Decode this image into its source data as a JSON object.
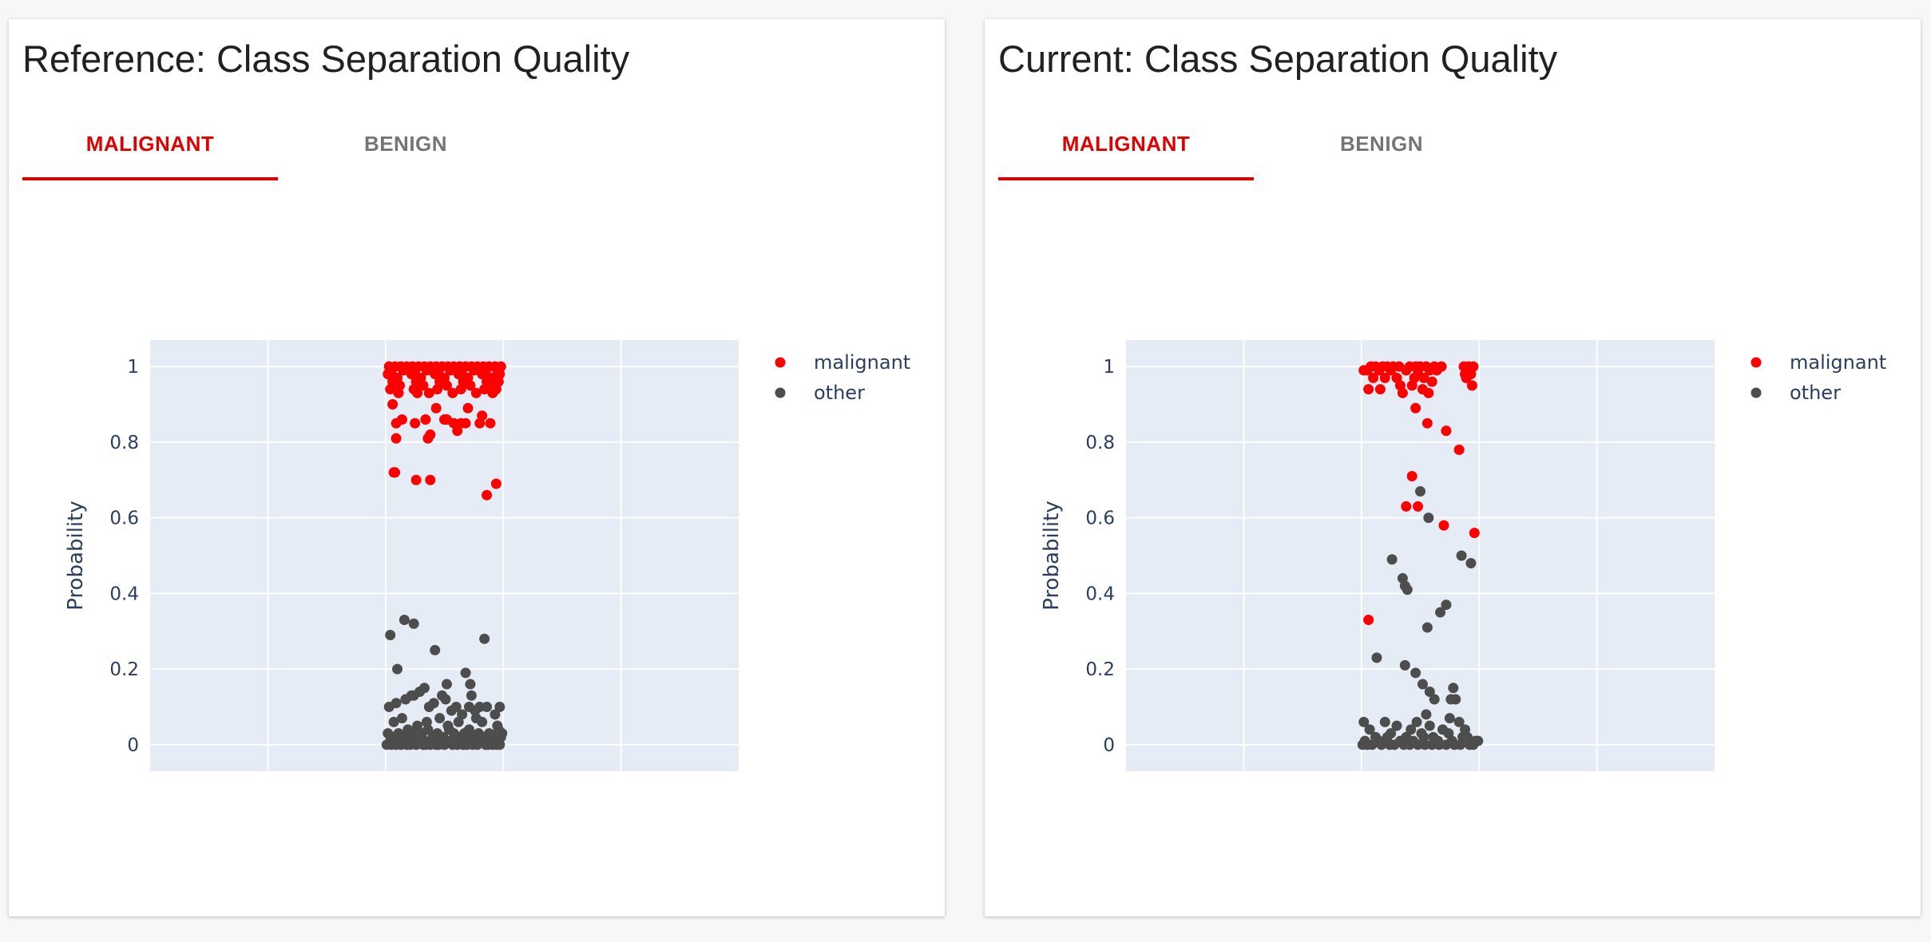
{
  "panels": [
    {
      "title": "Reference: Class Separation Quality",
      "tabs": [
        {
          "label": "MALIGNANT",
          "active": true
        },
        {
          "label": "BENIGN",
          "active": false
        }
      ]
    },
    {
      "title": "Current: Class Separation Quality",
      "tabs": [
        {
          "label": "MALIGNANT",
          "active": true
        },
        {
          "label": "BENIGN",
          "active": false
        }
      ]
    }
  ],
  "colors": {
    "accent": "#e00000",
    "malignant": "#ff0000",
    "other": "#4d4d4d",
    "plot_bg": "#e5ecf6",
    "tab_inactive": "#757575"
  },
  "chart_data": [
    {
      "type": "scatter",
      "title": "",
      "xlabel": "",
      "ylabel": "Probability",
      "ylim": [
        -0.07,
        1.07
      ],
      "xlim": [
        -1,
        4
      ],
      "yticks": [
        0,
        0.2,
        0.4,
        0.6,
        0.8,
        1
      ],
      "ytick_labels": [
        "0",
        "0.2",
        "0.4",
        "0.6",
        "0.8",
        "1"
      ],
      "grid": true,
      "legend": {
        "placement": "top-right",
        "entries": [
          "malignant",
          "other"
        ]
      },
      "series": [
        {
          "name": "malignant",
          "color": "#ff0000",
          "x": [
            1.03,
            1.08,
            1.13,
            1.18,
            1.23,
            1.28,
            1.33,
            1.38,
            1.43,
            1.48,
            1.53,
            1.58,
            1.63,
            1.68,
            1.73,
            1.78,
            1.83,
            1.88,
            1.93,
            1.98,
            1.05,
            1.15,
            1.25,
            1.35,
            1.45,
            1.55,
            1.65,
            1.75,
            1.85,
            1.95,
            1.02,
            1.22,
            1.42,
            1.62,
            1.82,
            1.97,
            1.1,
            1.3,
            1.5,
            1.7,
            1.9,
            1.06,
            1.26,
            1.46,
            1.66,
            1.86,
            1.96,
            1.12,
            1.32,
            1.52,
            1.72,
            1.92,
            1.04,
            1.24,
            1.44,
            1.64,
            1.84,
            1.94,
            1.11,
            1.27,
            1.37,
            1.57,
            1.77,
            1.91,
            1.06,
            1.14,
            1.34,
            1.43,
            1.5,
            1.58,
            1.7,
            1.82,
            1.89,
            1.09,
            1.25,
            1.52,
            1.68,
            1.8,
            1.09,
            1.36,
            1.38,
            1.64,
            1.61,
            1.07,
            1.08,
            1.26,
            1.38,
            1.86,
            1.94
          ],
          "y": [
            1,
            1,
            1,
            1,
            1,
            1,
            1,
            1,
            1,
            1,
            1,
            1,
            1,
            1,
            1,
            1,
            1,
            1,
            1,
            1,
            0.99,
            0.99,
            0.99,
            0.99,
            0.99,
            0.99,
            0.99,
            0.99,
            0.99,
            0.99,
            0.98,
            0.98,
            0.98,
            0.98,
            0.98,
            0.98,
            0.97,
            0.97,
            0.97,
            0.97,
            0.97,
            0.96,
            0.96,
            0.96,
            0.96,
            0.96,
            0.96,
            0.95,
            0.95,
            0.95,
            0.95,
            0.95,
            0.94,
            0.94,
            0.94,
            0.94,
            0.94,
            0.94,
            0.93,
            0.93,
            0.93,
            0.93,
            0.93,
            0.93,
            0.9,
            0.86,
            0.86,
            0.89,
            0.86,
            0.85,
            0.89,
            0.87,
            0.85,
            0.85,
            0.85,
            0.86,
            0.85,
            0.85,
            0.81,
            0.81,
            0.82,
            0.85,
            0.83,
            0.72,
            0.72,
            0.7,
            0.7,
            0.66,
            0.69
          ]
        },
        {
          "name": "other",
          "color": "#4d4d4d",
          "x": [
            1.04,
            1.16,
            1.24,
            1.84,
            1.1,
            1.42,
            1.24,
            1.52,
            1.68,
            1.72,
            1.73,
            1.03,
            1.09,
            1.17,
            1.22,
            1.29,
            1.33,
            1.37,
            1.41,
            1.48,
            1.51,
            1.56,
            1.6,
            1.65,
            1.71,
            1.76,
            1.8,
            1.86,
            1.93,
            1.97,
            1.07,
            1.14,
            1.27,
            1.35,
            1.46,
            1.53,
            1.62,
            1.77,
            1.82,
            1.95,
            1.02,
            1.06,
            1.11,
            1.15,
            1.19,
            1.23,
            1.28,
            1.31,
            1.36,
            1.4,
            1.44,
            1.49,
            1.54,
            1.58,
            1.63,
            1.67,
            1.71,
            1.75,
            1.79,
            1.83,
            1.88,
            1.92,
            1.96,
            1.99,
            1.04,
            1.12,
            1.2,
            1.3,
            1.39,
            1.47,
            1.55,
            1.64,
            1.73,
            1.81,
            1.9,
            1.98,
            1.01,
            1.05,
            1.09,
            1.13,
            1.18,
            1.21,
            1.26,
            1.32,
            1.34,
            1.38,
            1.43,
            1.45,
            1.5,
            1.57,
            1.61,
            1.66,
            1.69,
            1.74,
            1.78,
            1.85,
            1.87,
            1.91,
            1.94,
            1.97,
            1.08,
            1.16,
            1.25,
            1.33,
            1.41,
            1.52,
            1.59,
            1.68,
            1.76,
            1.84,
            1.93,
            1.07,
            1.28,
            1.46,
            1.62,
            1.8,
            1.95
          ],
          "y": [
            0.29,
            0.33,
            0.32,
            0.28,
            0.2,
            0.25,
            0.13,
            0.16,
            0.19,
            0.16,
            0.13,
            0.1,
            0.11,
            0.12,
            0.13,
            0.14,
            0.15,
            0.1,
            0.11,
            0.13,
            0.12,
            0.09,
            0.1,
            0.08,
            0.1,
            0.09,
            0.1,
            0.1,
            0.08,
            0.1,
            0.06,
            0.07,
            0.05,
            0.06,
            0.07,
            0.05,
            0.06,
            0.07,
            0.06,
            0.05,
            0.03,
            0.02,
            0.03,
            0.02,
            0.04,
            0.03,
            0.02,
            0.03,
            0.04,
            0.02,
            0.03,
            0.02,
            0.04,
            0.03,
            0.02,
            0.03,
            0.04,
            0.02,
            0.03,
            0.02,
            0.03,
            0.02,
            0.04,
            0.03,
            0.01,
            0.01,
            0.02,
            0.01,
            0.01,
            0.02,
            0.01,
            0.01,
            0.02,
            0.01,
            0.01,
            0.02,
            0,
            0,
            0,
            0,
            0,
            0,
            0,
            0,
            0,
            0,
            0,
            0,
            0,
            0,
            0,
            0,
            0,
            0,
            0,
            0,
            0,
            0,
            0,
            0,
            0.01,
            0.01,
            0.01,
            0.01,
            0.01,
            0.01,
            0.01,
            0.01,
            0.01,
            0.01,
            0.01,
            0.02,
            0.02,
            0.02,
            0.02,
            0.02,
            0.02
          ]
        }
      ]
    },
    {
      "type": "scatter",
      "title": "",
      "xlabel": "",
      "ylabel": "Probability",
      "ylim": [
        -0.07,
        1.07
      ],
      "xlim": [
        -1,
        4
      ],
      "yticks": [
        0,
        0.2,
        0.4,
        0.6,
        0.8,
        1
      ],
      "ytick_labels": [
        "0",
        "0.2",
        "0.4",
        "0.6",
        "0.8",
        "1"
      ],
      "grid": true,
      "legend": {
        "placement": "top-right",
        "entries": [
          "malignant",
          "other"
        ]
      },
      "series": [
        {
          "name": "malignant",
          "color": "#ff0000",
          "x": [
            1.02,
            1.08,
            1.12,
            1.18,
            1.22,
            1.27,
            1.32,
            1.41,
            1.46,
            1.5,
            1.55,
            1.62,
            1.68,
            1.87,
            1.91,
            1.95,
            1.05,
            1.15,
            1.25,
            1.38,
            1.48,
            1.58,
            1.64,
            1.88,
            1.93,
            1.1,
            1.2,
            1.3,
            1.45,
            1.53,
            1.6,
            1.89,
            1.06,
            1.16,
            1.33,
            1.43,
            1.52,
            1.57,
            1.94,
            1.35,
            1.46,
            1.56,
            1.72,
            1.83,
            1.43,
            1.38,
            1.48,
            1.7,
            1.96,
            1.06
          ],
          "y": [
            0.99,
            1,
            1,
            1,
            1,
            1,
            1,
            1,
            1,
            1,
            1,
            1,
            1,
            1,
            1,
            1,
            0.99,
            0.99,
            0.99,
            0.99,
            0.99,
            0.99,
            0.99,
            0.98,
            0.98,
            0.97,
            0.97,
            0.97,
            0.97,
            0.97,
            0.96,
            0.97,
            0.94,
            0.94,
            0.95,
            0.95,
            0.94,
            0.93,
            0.95,
            0.93,
            0.89,
            0.85,
            0.83,
            0.78,
            0.71,
            0.63,
            0.63,
            0.58,
            0.56,
            0.33
          ]
        },
        {
          "name": "other",
          "color": "#4d4d4d",
          "x": [
            1.5,
            1.57,
            1.85,
            1.93,
            1.35,
            1.37,
            1.39,
            1.72,
            1.67,
            1.56,
            1.26,
            1.13,
            1.37,
            1.46,
            1.52,
            1.58,
            1.78,
            1.76,
            1.62,
            1.8,
            1.47,
            1.55,
            1.75,
            1.02,
            1.07,
            1.2,
            1.3,
            1.42,
            1.58,
            1.69,
            1.83,
            1.88,
            1.12,
            1.25,
            1.38,
            1.51,
            1.61,
            1.74,
            1.9,
            1.03,
            1.15,
            1.22,
            1.33,
            1.44,
            1.53,
            1.65,
            1.77,
            1.86,
            1.97,
            1.01,
            1.05,
            1.09,
            1.17,
            1.24,
            1.28,
            1.36,
            1.41,
            1.48,
            1.54,
            1.6,
            1.66,
            1.72,
            1.79,
            1.84,
            1.92,
            1.95,
            1.99
          ],
          "y": [
            0.67,
            0.6,
            0.5,
            0.48,
            0.44,
            0.42,
            0.41,
            0.37,
            0.35,
            0.31,
            0.49,
            0.23,
            0.21,
            0.19,
            0.16,
            0.14,
            0.15,
            0.12,
            0.12,
            0.12,
            0.06,
            0.08,
            0.07,
            0.06,
            0.04,
            0.06,
            0.05,
            0.04,
            0.05,
            0.04,
            0.06,
            0.04,
            0.02,
            0.03,
            0.02,
            0.03,
            0.02,
            0.03,
            0.02,
            0.01,
            0.01,
            0.02,
            0.01,
            0.01,
            0.02,
            0.01,
            0.01,
            0.02,
            0.01,
            0,
            0,
            0,
            0,
            0,
            0,
            0,
            0,
            0,
            0,
            0,
            0,
            0,
            0,
            0,
            0,
            0,
            0.01
          ]
        }
      ]
    }
  ]
}
